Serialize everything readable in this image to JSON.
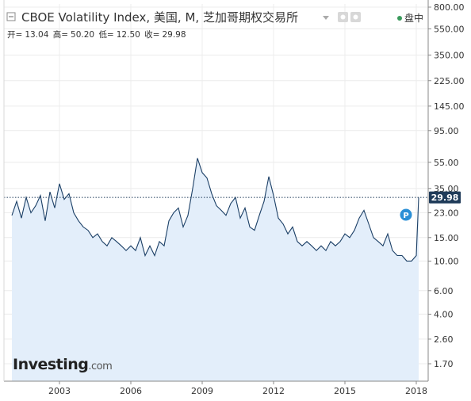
{
  "header": {
    "title": "CBOE Volatility Index, 美国, M, 芝加哥期权交易所",
    "market_status": "盘中",
    "collapse_icon": "minus-square-icon",
    "settings_icon": "gear-icon",
    "dropdown_icon": "caret-down-icon"
  },
  "ohlc": {
    "open_label": "开=",
    "open": "13.04",
    "high_label": "高=",
    "high": "50.20",
    "low_label": "低=",
    "low": "12.50",
    "close_label": "收=",
    "close": "29.98"
  },
  "watermark": {
    "brand": "Investing",
    "suffix": ".com"
  },
  "marker": {
    "label": "P"
  },
  "colors": {
    "line": "#1b3f66",
    "fill": "#e3eefa",
    "last_price_bg": "#1f3b59",
    "marker_bg": "#2a8fd6",
    "status_dot": "#3a9a5c"
  },
  "chart_data": {
    "type": "area",
    "scale": "log",
    "x_domain": [
      2000.9,
      2018.3
    ],
    "ylim": [
      1.3,
      850
    ],
    "y_ticks": [
      800,
      550,
      350,
      225,
      145,
      95,
      55,
      35,
      23,
      15,
      10,
      6,
      4,
      2.6,
      1.7
    ],
    "y_tick_labels": [
      "800.00",
      "550.00",
      "350.00",
      "225.00",
      "145.00",
      "95.00",
      "55.00",
      "35.00",
      "23.00",
      "15.00",
      "10.00",
      "6.00",
      "4.00",
      "2.60",
      "1.70"
    ],
    "x_ticks": [
      2003,
      2006,
      2009,
      2012,
      2015,
      2018
    ],
    "x_tick_labels": [
      "2003",
      "2006",
      "2009",
      "2012",
      "2015",
      "2018"
    ],
    "last_price": 29.98,
    "last_price_label": "29.98",
    "grid": true,
    "series": [
      {
        "x": [
          2001.0,
          2001.2,
          2001.4,
          2001.6,
          2001.8,
          2002.0,
          2002.2,
          2002.4,
          2002.6,
          2002.8,
          2003.0,
          2003.2,
          2003.4,
          2003.6,
          2003.8,
          2004.0,
          2004.2,
          2004.4,
          2004.6,
          2004.8,
          2005.0,
          2005.2,
          2005.4,
          2005.6,
          2005.8,
          2006.0,
          2006.2,
          2006.4,
          2006.6,
          2006.8,
          2007.0,
          2007.2,
          2007.4,
          2007.6,
          2007.8,
          2008.0,
          2008.2,
          2008.4,
          2008.6,
          2008.8,
          2009.0,
          2009.2,
          2009.4,
          2009.6,
          2009.8,
          2010.0,
          2010.2,
          2010.4,
          2010.6,
          2010.8,
          2011.0,
          2011.2,
          2011.4,
          2011.6,
          2011.8,
          2012.0,
          2012.2,
          2012.4,
          2012.6,
          2012.8,
          2013.0,
          2013.2,
          2013.4,
          2013.6,
          2013.8,
          2014.0,
          2014.2,
          2014.4,
          2014.6,
          2014.8,
          2015.0,
          2015.2,
          2015.4,
          2015.6,
          2015.8,
          2016.0,
          2016.2,
          2016.4,
          2016.6,
          2016.8,
          2017.0,
          2017.2,
          2017.4,
          2017.6,
          2017.8,
          2018.0,
          2018.1
        ],
        "values": [
          22,
          28,
          21,
          30,
          23,
          26,
          31,
          20,
          33,
          25,
          38,
          29,
          32,
          23,
          20,
          18,
          17,
          15,
          16,
          14,
          13,
          15,
          14,
          13,
          12,
          13,
          12,
          15,
          11,
          13,
          11,
          14,
          13,
          20,
          23,
          25,
          18,
          22,
          35,
          59,
          46,
          42,
          32,
          26,
          24,
          22,
          27,
          30,
          21,
          25,
          18,
          17,
          22,
          28,
          43,
          31,
          21,
          19,
          16,
          18,
          14,
          13,
          14,
          13,
          12,
          13,
          12,
          14,
          13,
          14,
          16,
          15,
          17,
          21,
          24,
          19,
          15,
          14,
          13,
          16,
          12,
          11,
          11,
          10,
          10,
          11,
          30
        ],
        "name": ""
      }
    ]
  }
}
